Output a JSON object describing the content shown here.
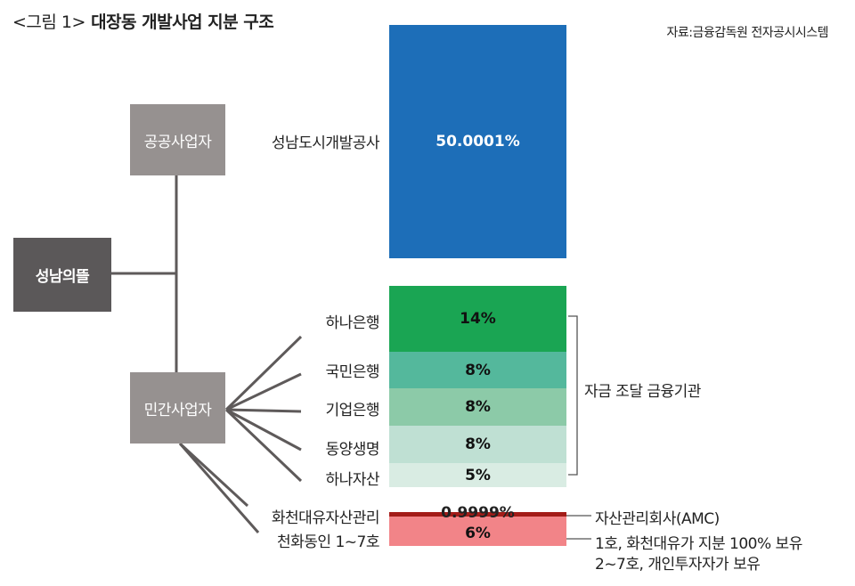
{
  "title": {
    "prefix": "<그림 1>",
    "main": "대장동 개발사업 지분 구조"
  },
  "source": "자료:금융감독원 전자공시시스템",
  "nodes": {
    "root": "성남의뜰",
    "public": "공공사업자",
    "private": "민간사업자"
  },
  "shareholders": [
    {
      "name": "성남도시개발공사",
      "share": "50.0001%",
      "color": "#1d6eb8"
    },
    {
      "name": "하나은행",
      "share": "14%",
      "color": "#1aa553"
    },
    {
      "name": "국민은행",
      "share": "8%",
      "color": "#54b89c"
    },
    {
      "name": "기업은행",
      "share": "8%",
      "color": "#8ccaa8"
    },
    {
      "name": "동양생명",
      "share": "8%",
      "color": "#bfe0d3"
    },
    {
      "name": "하나자산",
      "share": "5%",
      "color": "#d9ece3"
    },
    {
      "name": "화천대유자산관리",
      "share": "0.9999%",
      "color": "#a31c18"
    },
    {
      "name": "천화동인 1~7호",
      "share": "6%",
      "color": "#f28488"
    }
  ],
  "annotations": {
    "financial": "자금 조달 금융기관",
    "amc": "자산관리회사(AMC)",
    "owner_line1": "1호, 화천대유가 지분 100% 보유",
    "owner_line2": "2~7호, 개인투자자가 보유"
  }
}
